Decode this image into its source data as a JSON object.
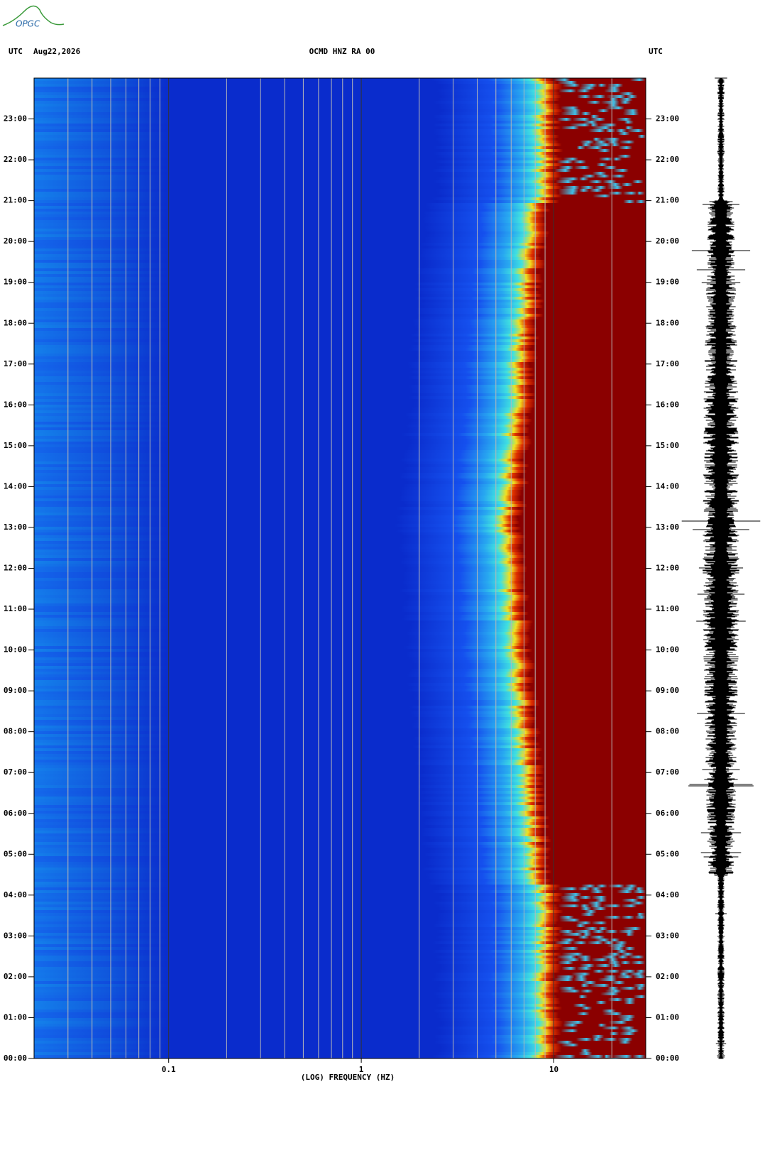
{
  "logo": "OPGC",
  "chart_data": {
    "type": "spectrogram",
    "title": "OCMD HNZ RA 00",
    "date": "Aug22,2026",
    "y_label_left": "UTC",
    "y_label_right": "UTC",
    "x_label": "(LOG) FREQUENCY (HZ)",
    "x_log": true,
    "xlim": [
      0.02,
      30
    ],
    "xticks": [
      0.1,
      1,
      10
    ],
    "xgrid": [
      0.03,
      0.04,
      0.05,
      0.06,
      0.07,
      0.08,
      0.09,
      0.2,
      0.3,
      0.4,
      0.5,
      0.6,
      0.7,
      0.8,
      0.9,
      2,
      3,
      4,
      5,
      6,
      7,
      8,
      9,
      20
    ],
    "ylim": [
      0,
      24
    ],
    "yticks": [
      {
        "value": 0,
        "label": "00:00"
      },
      {
        "value": 1,
        "label": "01:00"
      },
      {
        "value": 2,
        "label": "02:00"
      },
      {
        "value": 3,
        "label": "03:00"
      },
      {
        "value": 4,
        "label": "04:00"
      },
      {
        "value": 5,
        "label": "05:00"
      },
      {
        "value": 6,
        "label": "06:00"
      },
      {
        "value": 7,
        "label": "07:00"
      },
      {
        "value": 8,
        "label": "08:00"
      },
      {
        "value": 9,
        "label": "09:00"
      },
      {
        "value": 10,
        "label": "10:00"
      },
      {
        "value": 11,
        "label": "11:00"
      },
      {
        "value": 12,
        "label": "12:00"
      },
      {
        "value": 13,
        "label": "13:00"
      },
      {
        "value": 14,
        "label": "14:00"
      },
      {
        "value": 15,
        "label": "15:00"
      },
      {
        "value": 16,
        "label": "16:00"
      },
      {
        "value": 17,
        "label": "17:00"
      },
      {
        "value": 18,
        "label": "18:00"
      },
      {
        "value": 19,
        "label": "19:00"
      },
      {
        "value": 20,
        "label": "20:00"
      },
      {
        "value": 21,
        "label": "21:00"
      },
      {
        "value": 22,
        "label": "22:00"
      },
      {
        "value": 23,
        "label": "23:00"
      }
    ]
  }
}
